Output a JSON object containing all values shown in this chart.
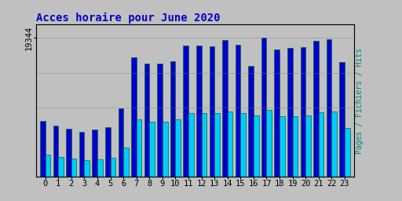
{
  "title": "Acces horaire pour June 2020",
  "ylabel_right": "Pages / Fichiers / Hits",
  "hours": [
    0,
    1,
    2,
    3,
    4,
    5,
    6,
    7,
    8,
    9,
    10,
    11,
    12,
    13,
    14,
    15,
    16,
    17,
    18,
    19,
    20,
    21,
    22,
    23
  ],
  "pages": [
    7800,
    7100,
    6700,
    6300,
    6600,
    6900,
    9600,
    16600,
    15800,
    15800,
    16100,
    18300,
    18300,
    18200,
    19100,
    18400,
    15400,
    19344,
    17800,
    18000,
    18100,
    19000,
    19200,
    16000
  ],
  "hits": [
    3100,
    2800,
    2500,
    2300,
    2400,
    2700,
    4100,
    8000,
    7700,
    7700,
    8000,
    8900,
    8900,
    8900,
    9100,
    8900,
    8600,
    9300,
    8500,
    8500,
    8600,
    9000,
    9100,
    6800
  ],
  "color_pages": "#0000cc",
  "color_hits": "#00ccff",
  "color_outline": "#006633",
  "background_color": "#c0c0c0",
  "plot_bg": "#c0c0c0",
  "title_color": "#0000cc",
  "ylabel_color": "#008080",
  "ymax": 19344,
  "ymin": 0,
  "title_fontsize": 10,
  "tick_fontsize": 7.5
}
